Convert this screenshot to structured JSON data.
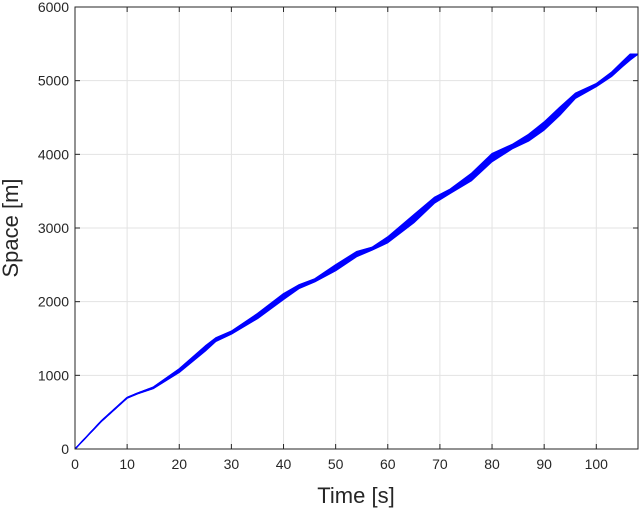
{
  "chart_data": {
    "type": "line",
    "title": "",
    "xlabel": "Time [s]",
    "ylabel": "Space [m]",
    "xlim": [
      0,
      108
    ],
    "ylim": [
      0,
      6000
    ],
    "xticks": [
      0,
      10,
      20,
      30,
      40,
      50,
      60,
      70,
      80,
      90,
      100
    ],
    "yticks": [
      0,
      1000,
      2000,
      3000,
      4000,
      5000,
      6000
    ],
    "grid": true,
    "legend": "none",
    "line_color": "#0000ff",
    "series_count": 12,
    "band": {
      "x": [
        0,
        5,
        10,
        12,
        15,
        20,
        25,
        27,
        30,
        35,
        40,
        43,
        46,
        50,
        54,
        57,
        60,
        65,
        69,
        72,
        76,
        80,
        84,
        87,
        90,
        93,
        96,
        100,
        103,
        105,
        106.5,
        108
      ],
      "upper": [
        0,
        380,
        700,
        760,
        840,
        1090,
        1400,
        1510,
        1600,
        1840,
        2110,
        2230,
        2310,
        2500,
        2680,
        2740,
        2880,
        3180,
        3420,
        3530,
        3740,
        4010,
        4140,
        4270,
        4440,
        4640,
        4830,
        4960,
        5120,
        5260,
        5360,
        5360
      ],
      "lower": [
        0,
        370,
        690,
        750,
        820,
        1040,
        1330,
        1460,
        1560,
        1770,
        2030,
        2180,
        2270,
        2420,
        2610,
        2700,
        2800,
        3070,
        3340,
        3470,
        3640,
        3900,
        4080,
        4180,
        4330,
        4530,
        4760,
        4920,
        5060,
        5190,
        5280,
        5360
      ]
    }
  }
}
